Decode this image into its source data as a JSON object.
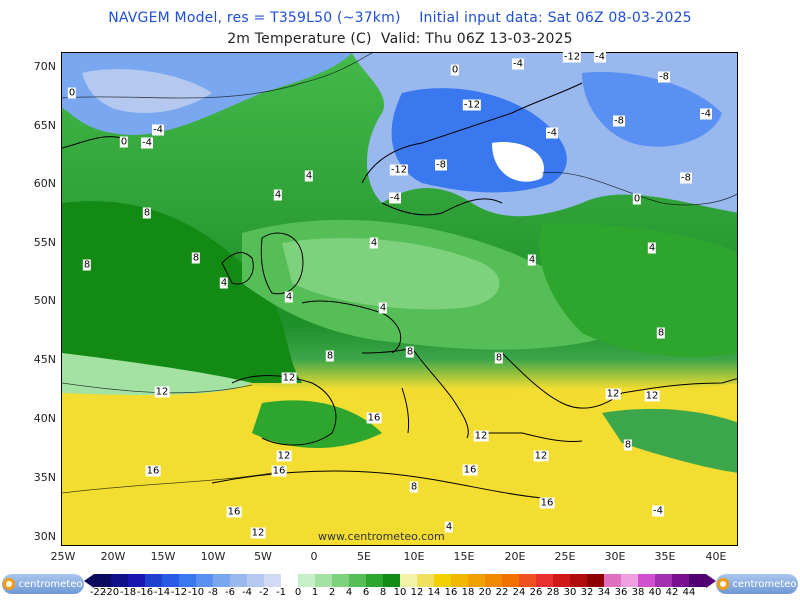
{
  "header": {
    "title_line1": "NAVGEM Model, res = T359L50 (~37km)    Initial input data: Sat 06Z 08-03-2025",
    "title_line2": "2m Temperature (C)  Valid: Thu 06Z 13-03-2025"
  },
  "axes": {
    "lat_labels": [
      "70N",
      "65N",
      "60N",
      "55N",
      "50N",
      "45N",
      "40N",
      "35N",
      "30N"
    ],
    "lon_labels": [
      "25W",
      "20W",
      "15W",
      "10W",
      "5W",
      "0",
      "5E",
      "10E",
      "15E",
      "20E",
      "25E",
      "30E",
      "35E",
      "40E"
    ]
  },
  "contour_labels": [
    "0",
    "-4",
    "-12",
    "-4",
    "-8",
    "0",
    "-4",
    "-12",
    "-4",
    "-8",
    "-4",
    "-8",
    "-12",
    "-8",
    "-4",
    "0",
    "-4",
    "0",
    "4",
    "4",
    "4",
    "8",
    "8",
    "8",
    "4",
    "4",
    "4",
    "4",
    "4",
    "8",
    "8",
    "8",
    "8",
    "12",
    "12",
    "12",
    "12",
    "16",
    "16",
    "16",
    "16",
    "12",
    "16",
    "12",
    "16",
    "12",
    "4",
    "8",
    "-4",
    "12",
    "8"
  ],
  "watermark": "www.centrometeo.com",
  "logo_text": "centrometeo",
  "legend": {
    "labels": [
      "-22",
      "-20",
      "-18",
      "-16",
      "-14",
      "-12",
      "-10",
      "-8",
      "-6",
      "-4",
      "-2",
      "-1",
      "0",
      "1",
      "2",
      "4",
      "6",
      "8",
      "10",
      "12",
      "14",
      "16",
      "18",
      "20",
      "22",
      "24",
      "26",
      "28",
      "30",
      "32",
      "34",
      "36",
      "38",
      "40",
      "42",
      "44"
    ],
    "colors": [
      "#0a0a5e",
      "#101088",
      "#1818b0",
      "#2040d0",
      "#2a5ae6",
      "#3a78f0",
      "#5a90f2",
      "#7aa8f0",
      "#98b8ee",
      "#b4c8f0",
      "#d0daf4",
      "#ffffff",
      "#c8f0c8",
      "#a4e2a4",
      "#7ed27e",
      "#56be56",
      "#2ea62e",
      "#138a13",
      "#f4f4a8",
      "#f0e060",
      "#f0d000",
      "#f0b800",
      "#f0a000",
      "#f08800",
      "#f07000",
      "#ef5020",
      "#e83030",
      "#d01818",
      "#b00c0c",
      "#900000",
      "#e070c0",
      "#f0a0e0",
      "#d050d0",
      "#a030b0",
      "#7a1090",
      "#500070"
    ]
  }
}
